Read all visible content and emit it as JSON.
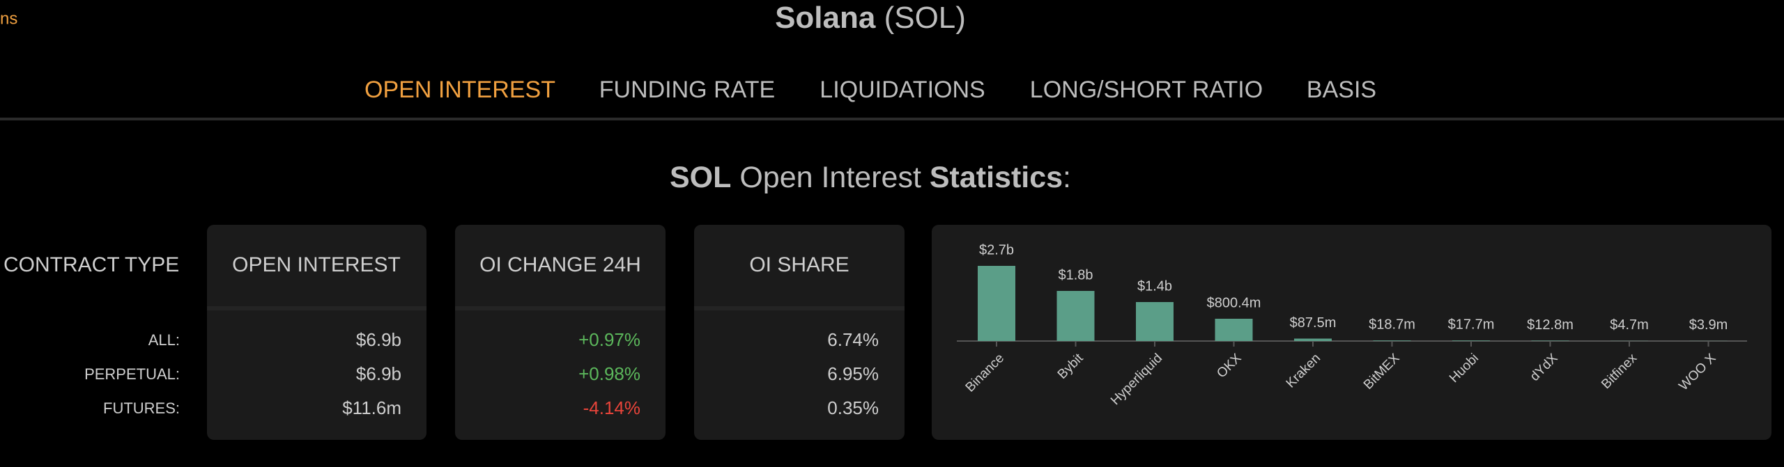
{
  "header": {
    "corner_text": "ns",
    "title_bold": "Solana",
    "title_rest": "(SOL)"
  },
  "tabs": [
    "OPEN INTEREST",
    "FUNDING RATE",
    "LIQUIDATIONS",
    "LONG/SHORT RATIO",
    "BASIS"
  ],
  "active_tab": 0,
  "heading": {
    "symbol": "SOL",
    "middle": "Open Interest",
    "bold": "Statistics",
    "end": ":"
  },
  "table": {
    "headers": [
      "CONTRACT TYPE",
      "OPEN INTEREST",
      "OI CHANGE 24H",
      "OI SHARE"
    ],
    "rows": [
      [
        "ALL:",
        "$6.9b",
        "+0.97%",
        "6.74%"
      ],
      [
        "PERPETUAL:",
        "$6.9b",
        "+0.98%",
        "6.95%"
      ],
      [
        "FUTURES:",
        "$11.6m",
        "-4.14%",
        "0.35%"
      ]
    ]
  },
  "chart_data": {
    "type": "bar",
    "categories": [
      "Binance",
      "Bybit",
      "Hyperliquid",
      "OKX",
      "Kraken",
      "BitMEX",
      "Huobi",
      "dYdX",
      "Bitfinex",
      "WOO X"
    ],
    "values": [
      2700000000,
      1800000000,
      1400000000,
      800400000,
      87500000,
      18700000,
      17700000,
      12800000,
      4700000,
      3900000
    ],
    "value_labels": [
      "$2.7b",
      "$1.8b",
      "$1.4b",
      "$800.4m",
      "$87.5m",
      "$18.7m",
      "$17.7m",
      "$12.8m",
      "$4.7m",
      "$3.9m"
    ],
    "color": "#5b9e88"
  }
}
